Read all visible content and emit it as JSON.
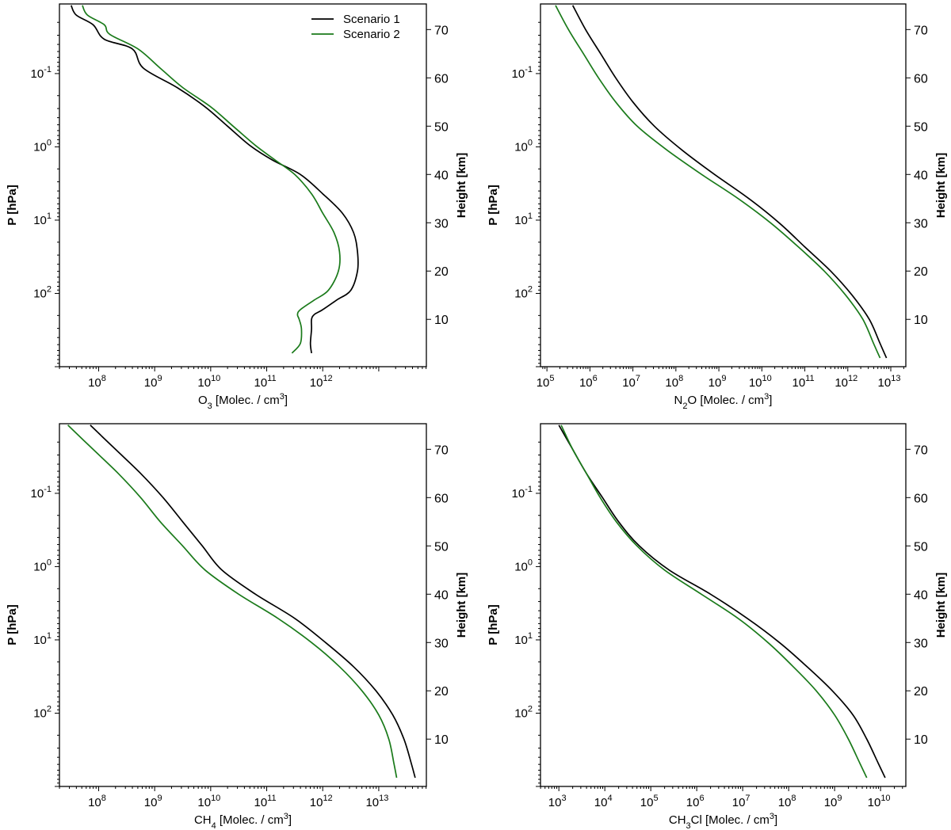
{
  "colors": {
    "scenario_1": "#000000",
    "scenario_2": "#1a7a1a",
    "axes": "#000000",
    "background": "#ffffff"
  },
  "legend": {
    "location": "top-right",
    "entries": [
      "Scenario 1",
      "Scenario 2"
    ]
  },
  "chart_data": [
    {
      "type": "line",
      "panel": "top-left",
      "xlabel": "O₃ [Molec. / cm³]",
      "ylabel": "P [hPa]",
      "ylabel_right": "Height [km]",
      "xscale": "log",
      "xlim_exp": [
        7.3,
        13.85
      ],
      "x_tick_exps": [
        8,
        9,
        10,
        11,
        12
      ],
      "yscale": "log",
      "ylim_exp": [
        -1.95,
        3.0
      ],
      "y_tick_exps": [
        -1,
        0,
        1,
        2
      ],
      "height_ticks_km": [
        10,
        20,
        30,
        40,
        50,
        60,
        70
      ],
      "height_range_km": [
        0.2,
        75.3
      ],
      "legend_visible": true,
      "series": [
        {
          "name": "Scenario 1",
          "height_km": [
            75,
            73,
            71,
            68,
            66,
            62,
            58,
            54,
            50,
            46,
            43,
            40,
            36,
            32,
            28,
            24,
            20,
            16,
            14,
            12,
            11,
            10,
            8,
            5,
            3
          ],
          "log10_x": [
            7.51,
            7.6,
            7.9,
            8.1,
            8.6,
            8.8,
            9.4,
            9.9,
            10.3,
            10.7,
            11.1,
            11.6,
            12.0,
            12.35,
            12.55,
            12.62,
            12.62,
            12.5,
            12.25,
            12.0,
            11.85,
            11.8,
            11.8,
            11.78,
            11.8
          ]
        },
        {
          "name": "Scenario 2",
          "height_km": [
            75,
            73,
            71,
            69,
            66,
            62,
            58,
            54,
            50,
            46,
            43,
            40,
            36,
            32,
            28,
            24,
            20,
            16,
            14,
            12,
            11,
            10,
            8,
            5,
            3
          ],
          "log10_x": [
            7.71,
            7.8,
            8.1,
            8.2,
            8.7,
            9.1,
            9.5,
            10.0,
            10.4,
            10.8,
            11.15,
            11.5,
            11.8,
            12.0,
            12.2,
            12.3,
            12.28,
            12.1,
            11.85,
            11.6,
            11.55,
            11.58,
            11.62,
            11.6,
            11.45
          ]
        }
      ]
    },
    {
      "type": "line",
      "panel": "top-right",
      "xlabel": "N₂O [Molec. / cm³]",
      "ylabel": "P [hPa]",
      "ylabel_right": "Height [km]",
      "xscale": "log",
      "xlim_exp": [
        4.85,
        13.35
      ],
      "x_tick_exps": [
        5,
        6,
        7,
        8,
        9,
        10,
        11,
        12,
        13
      ],
      "yscale": "log",
      "ylim_exp": [
        -1.95,
        3.0
      ],
      "y_tick_exps": [
        -1,
        0,
        1,
        2
      ],
      "height_ticks_km": [
        10,
        20,
        30,
        40,
        50,
        60,
        70
      ],
      "height_range_km": [
        0.2,
        75.3
      ],
      "legend_visible": false,
      "series": [
        {
          "name": "Scenario 1",
          "height_km": [
            75,
            70,
            65,
            60,
            55,
            50,
            45,
            40,
            35,
            30,
            25,
            20,
            15,
            10,
            5,
            2
          ],
          "log10_x": [
            5.6,
            5.9,
            6.25,
            6.6,
            7.0,
            7.5,
            8.15,
            8.9,
            9.7,
            10.4,
            11.0,
            11.6,
            12.1,
            12.5,
            12.75,
            12.9
          ]
        },
        {
          "name": "Scenario 2",
          "height_km": [
            75,
            70,
            65,
            60,
            55,
            50,
            45,
            40,
            35,
            30,
            25,
            20,
            15,
            10,
            5,
            2
          ],
          "log10_x": [
            5.2,
            5.5,
            5.85,
            6.2,
            6.6,
            7.1,
            7.8,
            8.6,
            9.45,
            10.2,
            10.85,
            11.45,
            11.95,
            12.35,
            12.6,
            12.75
          ]
        }
      ]
    },
    {
      "type": "line",
      "panel": "bottom-left",
      "xlabel": "CH₄ [Molec. / cm³]",
      "ylabel": "P [hPa]",
      "ylabel_right": "Height [km]",
      "xscale": "log",
      "xlim_exp": [
        7.3,
        13.85
      ],
      "x_tick_exps": [
        8,
        9,
        10,
        11,
        12,
        13
      ],
      "yscale": "log",
      "ylim_exp": [
        -1.95,
        3.0
      ],
      "y_tick_exps": [
        -1,
        0,
        1,
        2
      ],
      "height_ticks_km": [
        10,
        20,
        30,
        40,
        50,
        60,
        70
      ],
      "height_range_km": [
        0.2,
        75.3
      ],
      "legend_visible": false,
      "series": [
        {
          "name": "Scenario 1",
          "height_km": [
            75,
            70,
            65,
            60,
            55,
            50,
            45,
            40,
            35,
            30,
            25,
            20,
            15,
            10,
            5,
            2
          ],
          "log10_x": [
            7.85,
            8.3,
            8.75,
            9.15,
            9.5,
            9.85,
            10.2,
            10.8,
            11.5,
            12.05,
            12.55,
            12.95,
            13.25,
            13.45,
            13.58,
            13.65
          ]
        },
        {
          "name": "Scenario 2",
          "height_km": [
            75,
            70,
            65,
            60,
            55,
            50,
            45,
            40,
            35,
            30,
            25,
            20,
            15,
            10,
            5,
            2
          ],
          "log10_x": [
            7.45,
            7.9,
            8.35,
            8.75,
            9.1,
            9.5,
            9.9,
            10.5,
            11.2,
            11.8,
            12.3,
            12.7,
            13.0,
            13.18,
            13.27,
            13.32
          ]
        }
      ]
    },
    {
      "type": "line",
      "panel": "bottom-right",
      "xlabel": "CH₃Cl [Molec. / cm³]",
      "ylabel": "P [hPa]",
      "ylabel_right": "Height [km]",
      "xscale": "log",
      "xlim_exp": [
        2.6,
        10.55
      ],
      "x_tick_exps": [
        3,
        4,
        5,
        6,
        7,
        8,
        9,
        10
      ],
      "yscale": "log",
      "ylim_exp": [
        -1.95,
        3.0
      ],
      "y_tick_exps": [
        -1,
        0,
        1,
        2
      ],
      "height_ticks_km": [
        10,
        20,
        30,
        40,
        50,
        60,
        70
      ],
      "height_range_km": [
        0.2,
        75.3
      ],
      "legend_visible": false,
      "series": [
        {
          "name": "Scenario 1",
          "height_km": [
            75,
            70,
            65,
            60,
            55,
            50,
            45,
            40,
            35,
            30,
            25,
            20,
            15,
            10,
            5,
            2
          ],
          "log10_x": [
            3.0,
            3.3,
            3.6,
            3.95,
            4.3,
            4.75,
            5.4,
            6.3,
            7.1,
            7.8,
            8.4,
            8.95,
            9.4,
            9.7,
            9.95,
            10.1
          ]
        },
        {
          "name": "Scenario 2",
          "height_km": [
            75,
            70,
            65,
            60,
            55,
            50,
            45,
            40,
            35,
            30,
            25,
            20,
            15,
            10,
            5,
            2
          ],
          "log10_x": [
            3.05,
            3.3,
            3.6,
            3.9,
            4.25,
            4.7,
            5.3,
            6.1,
            6.9,
            7.55,
            8.1,
            8.6,
            9.0,
            9.3,
            9.55,
            9.7
          ]
        }
      ]
    }
  ]
}
